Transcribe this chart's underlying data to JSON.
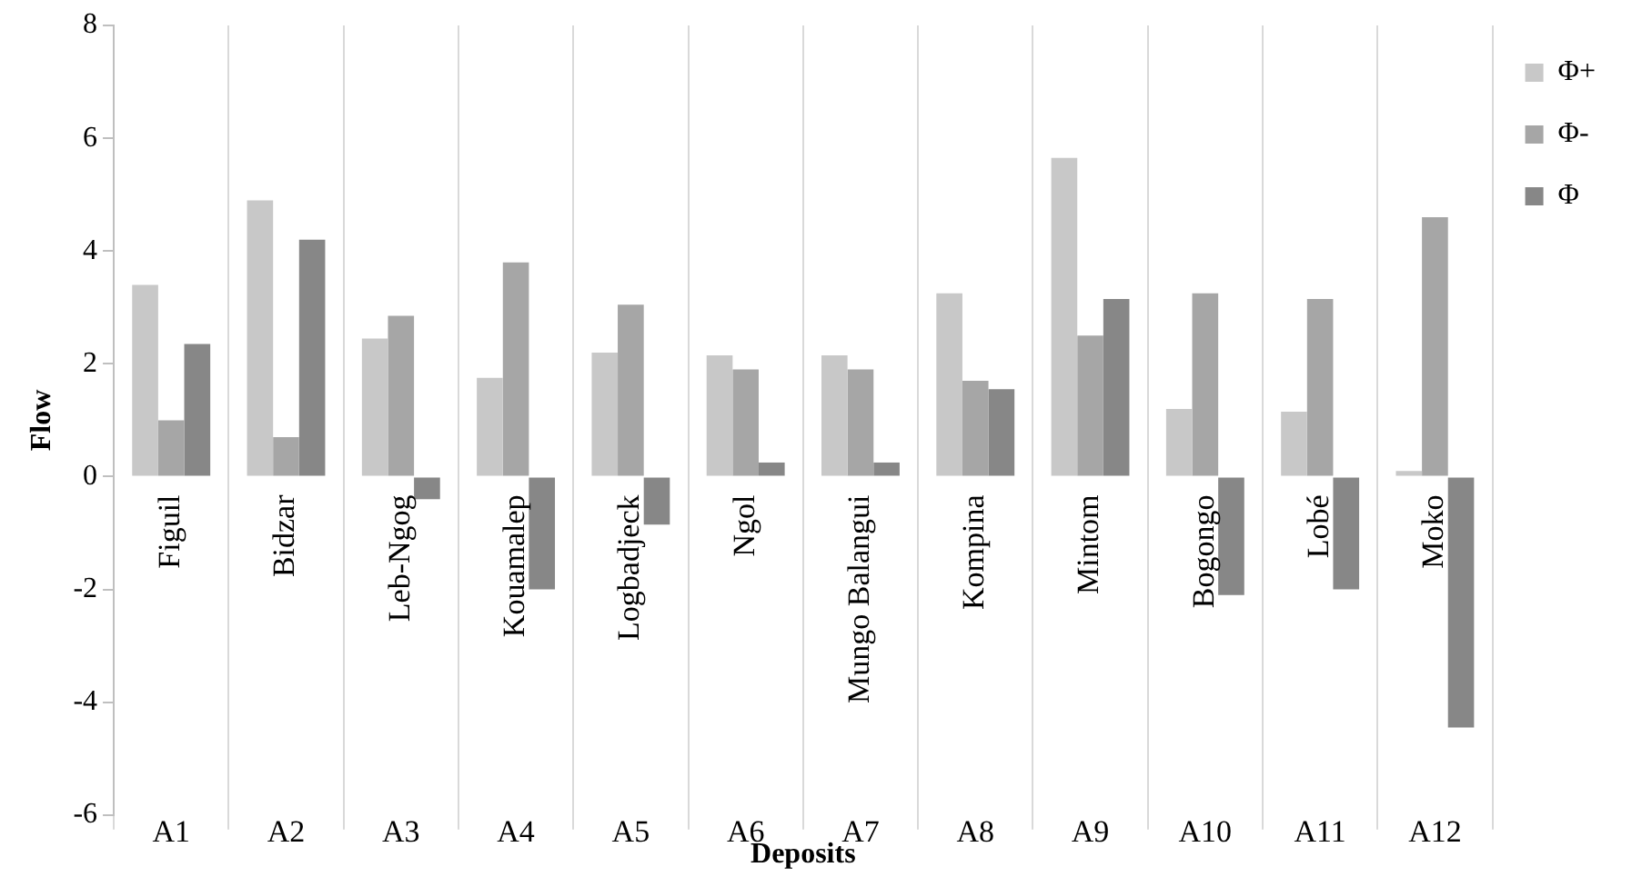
{
  "chart_data": {
    "type": "bar",
    "xlabel": "Deposits",
    "ylabel": "Flow",
    "categories": [
      "A1",
      "A2",
      "A3",
      "A4",
      "A5",
      "A6",
      "A7",
      "A8",
      "A9",
      "A10",
      "A11",
      "A12"
    ],
    "series": [
      {
        "name": "Φ+",
        "color": "#c8c8c8",
        "values": [
          3.4,
          4.9,
          2.45,
          1.75,
          2.2,
          2.15,
          2.15,
          3.25,
          5.65,
          1.2,
          1.15,
          0.1
        ]
      },
      {
        "name": "Φ-",
        "color": "#a6a6a6",
        "values": [
          1.0,
          0.7,
          2.85,
          3.8,
          3.05,
          1.9,
          1.9,
          1.7,
          2.5,
          3.25,
          3.15,
          4.6
        ]
      },
      {
        "name": "Φ",
        "color": "#878787",
        "values": [
          2.35,
          4.2,
          -0.4,
          -2.0,
          -0.85,
          0.25,
          0.25,
          1.55,
          3.15,
          -2.1,
          -2.0,
          -4.45
        ]
      }
    ],
    "ylim": [
      -6,
      8
    ],
    "yticks": [
      -6,
      -4,
      -2,
      0,
      2,
      4,
      6,
      8
    ],
    "grid": "x",
    "legend": "top right",
    "annotations": [
      "Figuil",
      "Bidzar",
      "Leb-Ngog",
      "Kouamalep",
      "Logbadjeck",
      "Ngol",
      "Mungo Balangui",
      "Kompina",
      "Mintom",
      "Bogongo",
      "Lobé",
      "Moko"
    ]
  }
}
